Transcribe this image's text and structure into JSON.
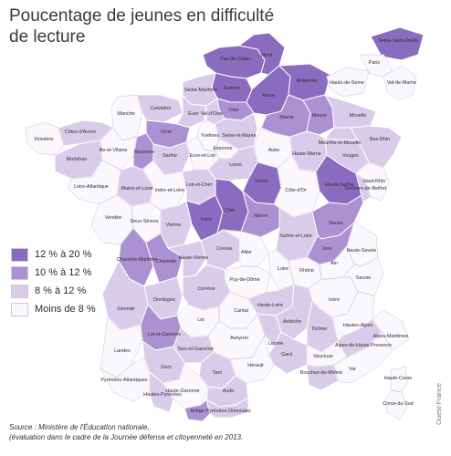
{
  "title_line1": "Poucentage de jeunes en difficulté",
  "title_line2": "de lecture",
  "colors": {
    "c1": "#8b6bbf",
    "c2": "#ab90d2",
    "c3": "#d9cceb",
    "c4": "#faf8fd",
    "border": "#ffffff",
    "outline": "#b9afc9"
  },
  "legend": [
    {
      "label": "12 % à 20 %",
      "color": "#8b6bbf"
    },
    {
      "label": "10 % à 12 %",
      "color": "#ab90d2"
    },
    {
      "label": "8 % à 12 %",
      "color": "#d9cceb"
    },
    {
      "label": "Moins de 8 %",
      "color": "#faf8fd"
    }
  ],
  "source_line1": "Source : Ministère de l'Éducation nationale,",
  "source_line2": "(évaluation dans le cadre de la Journée défense et citoyenneté en 2013.",
  "credit": "Ouest-France",
  "departments": [
    {
      "name": "Pas-de-Calais",
      "cls": "c1"
    },
    {
      "name": "Nord",
      "cls": "c1"
    },
    {
      "name": "Somme",
      "cls": "c1"
    },
    {
      "name": "Seine-Maritime",
      "cls": "c3"
    },
    {
      "name": "Oise",
      "cls": "c2"
    },
    {
      "name": "Aisne",
      "cls": "c1"
    },
    {
      "name": "Ardennes",
      "cls": "c1"
    },
    {
      "name": "Manche",
      "cls": "c4"
    },
    {
      "name": "Calvados",
      "cls": "c3"
    },
    {
      "name": "Eure",
      "cls": "c3"
    },
    {
      "name": "Val-d'Oise",
      "cls": "c3"
    },
    {
      "name": "Yvelines",
      "cls": "c4"
    },
    {
      "name": "Seine-et-Marne",
      "cls": "c3"
    },
    {
      "name": "Marne",
      "cls": "c2"
    },
    {
      "name": "Meuse",
      "cls": "c2"
    },
    {
      "name": "Moselle",
      "cls": "c3"
    },
    {
      "name": "Finistère",
      "cls": "c4"
    },
    {
      "name": "Côtes-d'Armor",
      "cls": "c3"
    },
    {
      "name": "Orne",
      "cls": "c2"
    },
    {
      "name": "Essonne",
      "cls": "c4"
    },
    {
      "name": "Meurthe-et-Moselle",
      "cls": "c3"
    },
    {
      "name": "Bas-Rhin",
      "cls": "c3"
    },
    {
      "name": "Morbihan",
      "cls": "c3"
    },
    {
      "name": "Ille-et-Vilaine",
      "cls": "c4"
    },
    {
      "name": "Mayenne",
      "cls": "c2"
    },
    {
      "name": "Sarthe",
      "cls": "c3"
    },
    {
      "name": "Eure-et-Loir",
      "cls": "c4"
    },
    {
      "name": "Loiret",
      "cls": "c3"
    },
    {
      "name": "Aube",
      "cls": "c4"
    },
    {
      "name": "Haute-Marne",
      "cls": "c3"
    },
    {
      "name": "Vosges",
      "cls": "c3"
    },
    {
      "name": "Haut-Rhin",
      "cls": "c4"
    },
    {
      "name": "Loire-Atlantique",
      "cls": "c4"
    },
    {
      "name": "Maine-et-Loire",
      "cls": "c3"
    },
    {
      "name": "Indre-et-Loire",
      "cls": "c4"
    },
    {
      "name": "Loir-et-Cher",
      "cls": "c3"
    },
    {
      "name": "Yonne",
      "cls": "c1"
    },
    {
      "name": "Côte-d'Or",
      "cls": "c4"
    },
    {
      "name": "Haute-Saône",
      "cls": "c1"
    },
    {
      "name": "Territoire-de-Belfort",
      "cls": "c3"
    },
    {
      "name": "Vendée",
      "cls": "c4"
    },
    {
      "name": "Deux-Sèvres",
      "cls": "c4"
    },
    {
      "name": "Vienne",
      "cls": "c3"
    },
    {
      "name": "Indre",
      "cls": "c1"
    },
    {
      "name": "Cher",
      "cls": "c1"
    },
    {
      "name": "Nièvre",
      "cls": "c2"
    },
    {
      "name": "Saône-et-Loire",
      "cls": "c3"
    },
    {
      "name": "Doubs",
      "cls": "c2"
    },
    {
      "name": "Jura",
      "cls": "c2"
    },
    {
      "name": "Charente-Maritime",
      "cls": "c2"
    },
    {
      "name": "Charente",
      "cls": "c2"
    },
    {
      "name": "Haute-Vienne",
      "cls": "c3"
    },
    {
      "name": "Creuse",
      "cls": "c3"
    },
    {
      "name": "Allier",
      "cls": "c4"
    },
    {
      "name": "Loire",
      "cls": "c4"
    },
    {
      "name": "Rhône",
      "cls": "c4"
    },
    {
      "name": "Ain",
      "cls": "c4"
    },
    {
      "name": "Haute-Savoie",
      "cls": "c4"
    },
    {
      "name": "Puy-de-Dôme",
      "cls": "c4"
    },
    {
      "name": "Savoie",
      "cls": "c4"
    },
    {
      "name": "Dordogne",
      "cls": "c3"
    },
    {
      "name": "Corrèze",
      "cls": "c3"
    },
    {
      "name": "Cantal",
      "cls": "c4"
    },
    {
      "name": "Haute-Loire",
      "cls": "c3"
    },
    {
      "name": "Isère",
      "cls": "c4"
    },
    {
      "name": "Gironde",
      "cls": "c3"
    },
    {
      "name": "Lot",
      "cls": "c4"
    },
    {
      "name": "Ardèche",
      "cls": "c3"
    },
    {
      "name": "Drôme",
      "cls": "c3"
    },
    {
      "name": "Hautes-Alpes",
      "cls": "c4"
    },
    {
      "name": "Lot-et-Garonne",
      "cls": "c2"
    },
    {
      "name": "Aveyron",
      "cls": "c4"
    },
    {
      "name": "Lozère",
      "cls": "c3"
    },
    {
      "name": "Landes",
      "cls": "c4"
    },
    {
      "name": "Tarn-et-Garonne",
      "cls": "c3"
    },
    {
      "name": "Gard",
      "cls": "c3"
    },
    {
      "name": "Vaucluse",
      "cls": "c4"
    },
    {
      "name": "Alpes-de-Haute-Provence",
      "cls": "c3"
    },
    {
      "name": "Alpes-Maritimes",
      "cls": "c4"
    },
    {
      "name": "Gers",
      "cls": "c3"
    },
    {
      "name": "Tarn",
      "cls": "c3"
    },
    {
      "name": "Pyrénées-Atlantiques",
      "cls": "c4"
    },
    {
      "name": "Haute-Garonne",
      "cls": "c4"
    },
    {
      "name": "Hérault",
      "cls": "c4"
    },
    {
      "name": "Bouches-du-Rhône",
      "cls": "c3"
    },
    {
      "name": "Var",
      "cls": "c4"
    },
    {
      "name": "Hautes-Pyrénées",
      "cls": "c3"
    },
    {
      "name": "Aude",
      "cls": "c3"
    },
    {
      "name": "Ariège",
      "cls": "c2"
    },
    {
      "name": "Pyrénées-Orientales",
      "cls": "c3"
    },
    {
      "name": "Haute-Corse",
      "cls": "c4"
    },
    {
      "name": "Corse-du-Sud",
      "cls": "c4"
    },
    {
      "name": "Seine-Saint-Denis",
      "cls": "c1"
    },
    {
      "name": "Hauts-de-Seine",
      "cls": "c4"
    },
    {
      "name": "Paris",
      "cls": "c4"
    },
    {
      "name": "Val-de-Marne",
      "cls": "c4"
    }
  ]
}
